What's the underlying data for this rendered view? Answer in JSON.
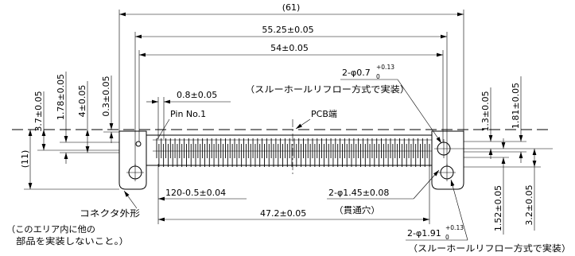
{
  "drawing": {
    "top_dimensions": {
      "overall_width": "(61)",
      "outer_hole_pitch": "55.25±0.05",
      "inner_hole_pitch": "54±0.05"
    },
    "small_hole_callout": {
      "label": "2-φ0.7",
      "tol_upper": "+0.13",
      "tol_lower": "0",
      "note": "（スルーホールリフロー方式で実装）"
    },
    "pitch_dimension": "0.8±0.05",
    "pin1_label": "Pin No.1",
    "pcb_edge_label": "PCB端",
    "left_dimensions": {
      "first": "3.7±0.05",
      "second": "1.78±0.05",
      "third": "4±0.05",
      "fourth": "0.3±0.05",
      "overall_height": "(11)"
    },
    "right_dimensions": {
      "upper_first": "1.3±0.05",
      "upper_second": "1.81±0.05",
      "lower_first": "1.52±0.05",
      "lower_second": "3.2±0.05"
    },
    "bottom_dimensions": {
      "pin_span": "120-0.5±0.04",
      "hole_span": "47.2±0.05"
    },
    "through_hole_callout": {
      "label": "2-φ1.45±0.08",
      "note": "（貫通穴）"
    },
    "large_hole_callout": {
      "label": "2-φ1.91",
      "tol_upper": "+0.13",
      "tol_lower": "0",
      "note": "（スルーホールリフロー方式で実装）"
    },
    "outline_callout": {
      "label": "コネクタ外形",
      "note_line1": "（このエリア内に他の",
      "note_line2": "部品を実装しないこと。）"
    }
  }
}
